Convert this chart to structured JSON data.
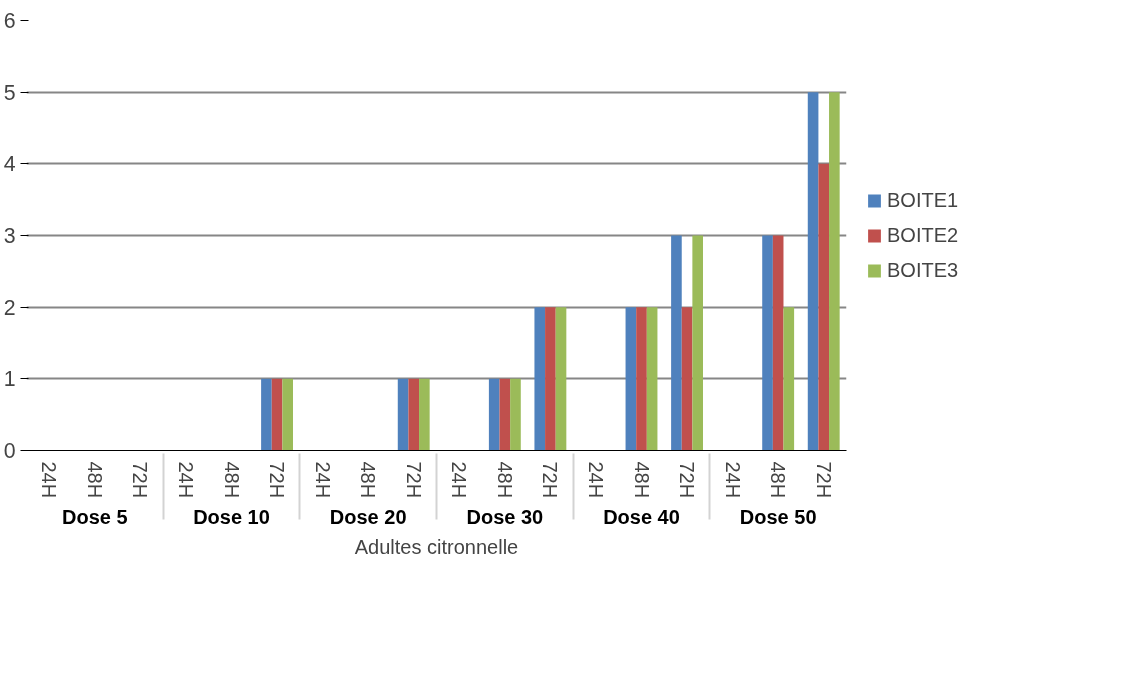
{
  "chart_data": {
    "type": "bar",
    "xlabel": "Adultes citronnelle",
    "categories": [
      "24H",
      "48H",
      "72H",
      "24H",
      "48H",
      "72H",
      "24H",
      "48H",
      "72H",
      "24H",
      "48H",
      "72H",
      "24H",
      "48H",
      "72H",
      "24H",
      "48H",
      "72H"
    ],
    "annotations": [
      "Dose 5",
      "Dose 10",
      "Dose 20",
      "Dose 30",
      "Dose 40",
      "Dose 50"
    ],
    "series": [
      {
        "name": "BOITE1",
        "color": "#4f81bd",
        "values": [
          0,
          0,
          0,
          0,
          0,
          1,
          0,
          0,
          1,
          0,
          1,
          2,
          0,
          2,
          3,
          0,
          3,
          5
        ]
      },
      {
        "name": "BOITE2",
        "color": "#c0504d",
        "values": [
          0,
          0,
          0,
          0,
          0,
          1,
          0,
          0,
          1,
          0,
          1,
          2,
          0,
          2,
          2,
          0,
          3,
          4
        ]
      },
      {
        "name": "BOITE3",
        "color": "#9bbb59",
        "values": [
          0,
          0,
          0,
          0,
          0,
          1,
          0,
          0,
          1,
          0,
          1,
          2,
          0,
          2,
          3,
          0,
          2,
          5
        ]
      }
    ],
    "ylim": [
      0,
      6
    ],
    "yticks": [
      0,
      1,
      2,
      3,
      4,
      5,
      6
    ],
    "grid": "y",
    "legend": "right"
  }
}
